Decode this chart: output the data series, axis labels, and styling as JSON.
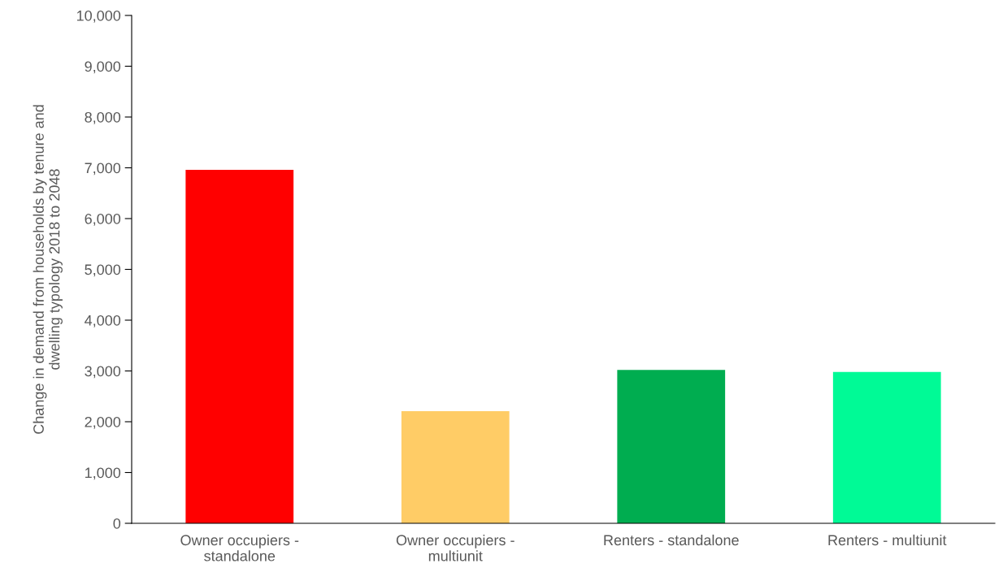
{
  "chart_data": {
    "type": "bar",
    "ylabel": "Change in demand from households by tenure and\ndwelling typology 2018 to 2048",
    "categories": [
      "Owner occupiers -\nstandalone",
      "Owner occupiers -\nmultiunit",
      "Renters - standalone",
      "Renters - multiunit"
    ],
    "values": [
      6960,
      2210,
      3020,
      2980
    ],
    "colors": [
      "#ff0000",
      "#ffcc66",
      "#00ad50",
      "#00fa96"
    ],
    "ylim": [
      0,
      10000
    ],
    "yticks": [
      {
        "value": 0,
        "label": "0"
      },
      {
        "value": 1000,
        "label": "1,000"
      },
      {
        "value": 2000,
        "label": "2,000"
      },
      {
        "value": 3000,
        "label": "3,000"
      },
      {
        "value": 4000,
        "label": "4,000"
      },
      {
        "value": 5000,
        "label": "5,000"
      },
      {
        "value": 6000,
        "label": "6,000"
      },
      {
        "value": 7000,
        "label": "7,000"
      },
      {
        "value": 8000,
        "label": "8,000"
      },
      {
        "value": 9000,
        "label": "9,000"
      },
      {
        "value": 10000,
        "label": "10,000"
      }
    ],
    "grid": false
  }
}
